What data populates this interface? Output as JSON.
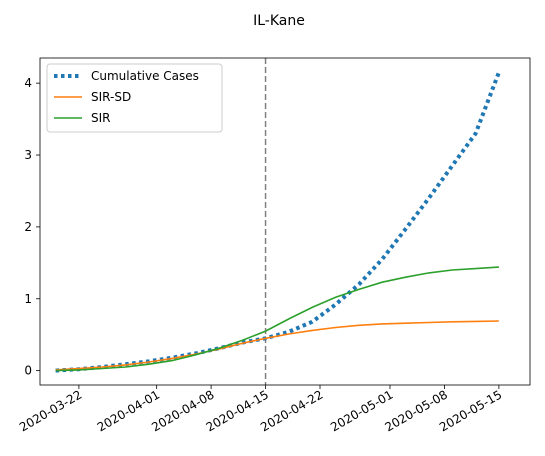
{
  "chart_data": {
    "type": "line",
    "title": "IL-Kane",
    "xlabel": "",
    "ylabel": "",
    "x_axis": {
      "type": "date",
      "range": [
        "2020-03-17",
        "2020-05-19"
      ],
      "ticks": [
        "2020-03-22",
        "2020-04-01",
        "2020-04-08",
        "2020-04-15",
        "2020-04-22",
        "2020-05-01",
        "2020-05-08",
        "2020-05-15"
      ]
    },
    "y_axis": {
      "range": [
        -0.2,
        4.35
      ],
      "ticks": [
        0,
        1,
        2,
        3,
        4
      ]
    },
    "grid": false,
    "legend": "top-left",
    "vline": {
      "x": "2020-04-15",
      "style": "dashed",
      "color": "#808080"
    },
    "series": [
      {
        "name": "Cumulative Cases",
        "color": "#1f77b4",
        "style": "dotted",
        "x": [
          "2020-03-19",
          "2020-03-22",
          "2020-03-25",
          "2020-03-28",
          "2020-03-31",
          "2020-04-03",
          "2020-04-06",
          "2020-04-09",
          "2020-04-12",
          "2020-04-15",
          "2020-04-18",
          "2020-04-21",
          "2020-04-24",
          "2020-04-27",
          "2020-04-30",
          "2020-05-03",
          "2020-05-06",
          "2020-05-09",
          "2020-05-12",
          "2020-05-15"
        ],
        "y": [
          0.0,
          0.02,
          0.05,
          0.09,
          0.13,
          0.18,
          0.24,
          0.31,
          0.39,
          0.45,
          0.54,
          0.68,
          0.92,
          1.2,
          1.55,
          1.97,
          2.4,
          2.85,
          3.3,
          4.15
        ]
      },
      {
        "name": "SIR-SD",
        "color": "#ff7f0e",
        "style": "solid",
        "x": [
          "2020-03-19",
          "2020-03-22",
          "2020-03-25",
          "2020-03-28",
          "2020-03-31",
          "2020-04-03",
          "2020-04-06",
          "2020-04-09",
          "2020-04-12",
          "2020-04-15",
          "2020-04-18",
          "2020-04-21",
          "2020-04-24",
          "2020-04-27",
          "2020-04-30",
          "2020-05-03",
          "2020-05-06",
          "2020-05-09",
          "2020-05-12",
          "2020-05-15"
        ],
        "y": [
          0.01,
          0.03,
          0.05,
          0.08,
          0.12,
          0.17,
          0.23,
          0.3,
          0.38,
          0.45,
          0.51,
          0.56,
          0.6,
          0.63,
          0.65,
          0.66,
          0.67,
          0.68,
          0.685,
          0.69
        ]
      },
      {
        "name": "SIR",
        "color": "#2ca02c",
        "style": "solid",
        "x": [
          "2020-03-19",
          "2020-03-22",
          "2020-03-25",
          "2020-03-28",
          "2020-03-31",
          "2020-04-03",
          "2020-04-06",
          "2020-04-09",
          "2020-04-12",
          "2020-04-15",
          "2020-04-18",
          "2020-04-21",
          "2020-04-24",
          "2020-04-27",
          "2020-04-30",
          "2020-05-03",
          "2020-05-06",
          "2020-05-09",
          "2020-05-12",
          "2020-05-15"
        ],
        "y": [
          0.0,
          0.01,
          0.03,
          0.05,
          0.09,
          0.14,
          0.22,
          0.31,
          0.42,
          0.55,
          0.72,
          0.88,
          1.02,
          1.13,
          1.23,
          1.3,
          1.36,
          1.4,
          1.42,
          1.44
        ]
      }
    ]
  }
}
